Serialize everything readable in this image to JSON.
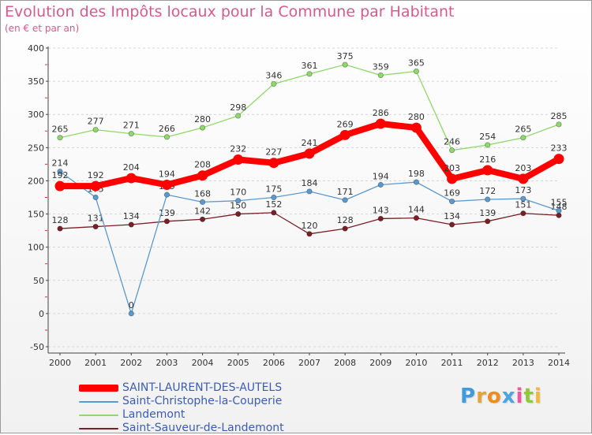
{
  "header": {
    "title": "Evolution des Impôts locaux pour la Commune par Habitant",
    "subtitle": "(en € et par an)"
  },
  "brand": {
    "letters": [
      "P",
      "r",
      "o",
      "x",
      "i",
      "t",
      "i"
    ],
    "colors": [
      "#3f9be0",
      "#e8a23a",
      "#f08c1e",
      "#4aa5e0",
      "#e85aa0",
      "#8fc93a",
      "#f0b93c"
    ]
  },
  "chart_data": {
    "type": "line",
    "title": "Evolution des Impôts locaux pour la Commune par Habitant",
    "subtitle": "(en € et par an)",
    "x": [
      "2000",
      "2001",
      "2002",
      "2003",
      "2004",
      "2005",
      "2006",
      "2007",
      "2008",
      "2009",
      "2010",
      "2011",
      "2012",
      "2013",
      "2014"
    ],
    "ylim": [
      -50,
      400
    ],
    "yticks": [
      "-50",
      "0",
      "50",
      "100",
      "150",
      "200",
      "250",
      "300",
      "350",
      "400"
    ],
    "grid": true,
    "legend_position": "bottom-left",
    "series": [
      {
        "name": "SAINT-LAURENT-DES-AUTELS",
        "color": "#ff0000",
        "values": [
          192,
          192,
          204,
          194,
          208,
          232,
          227,
          241,
          269,
          286,
          280,
          203,
          216,
          203,
          233
        ],
        "labels": [
          "192",
          "192",
          "204",
          "194",
          "208",
          "232",
          "227",
          "241",
          "269",
          "286",
          "280",
          "203",
          "216",
          "203",
          "233"
        ]
      },
      {
        "name": "Saint-Christophe-la-Couperie",
        "color": "#5a9ad0",
        "values": [
          214,
          175,
          0,
          179,
          168,
          170,
          175,
          184,
          171,
          194,
          198,
          169,
          172,
          173,
          155
        ],
        "labels": [
          "214",
          "175",
          "0",
          "179",
          "168",
          "170",
          "175",
          "184",
          "171",
          "194",
          "198",
          "169",
          "172",
          "173",
          "155"
        ]
      },
      {
        "name": "Landemont",
        "color": "#8fd86a",
        "values": [
          265,
          277,
          271,
          266,
          280,
          298,
          346,
          361,
          375,
          359,
          365,
          246,
          254,
          265,
          285
        ],
        "labels": [
          "265",
          "277",
          "271",
          "266",
          "280",
          "298",
          "346",
          "361",
          "375",
          "359",
          "365",
          "246",
          "254",
          "265",
          "285"
        ]
      },
      {
        "name": "Saint-Sauveur-de-Landemont",
        "color": "#7a1f25",
        "values": [
          128,
          131,
          134,
          139,
          142,
          150,
          152,
          120,
          128,
          143,
          144,
          134,
          139,
          151,
          148
        ],
        "labels": [
          "128",
          "131",
          "134",
          "139",
          "142",
          "150",
          "152",
          "120",
          "128",
          "143",
          "144",
          "134",
          "139",
          "151",
          "148"
        ]
      }
    ]
  }
}
